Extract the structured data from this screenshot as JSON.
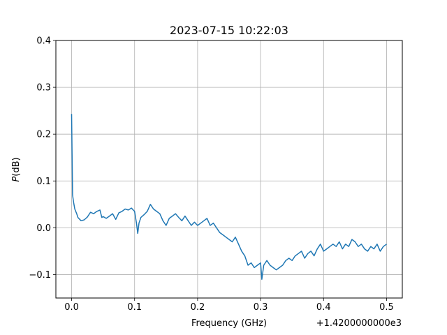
{
  "chart_data": {
    "type": "line",
    "title": "2023-07-15 10:22:03",
    "xlabel": "Frequency (GHz)",
    "ylabel_italic": "P",
    "ylabel_rest": "(dB)",
    "offset_text": "+1.4200000000e3",
    "xlim": [
      -0.025,
      0.525
    ],
    "ylim": [
      -0.15,
      0.4
    ],
    "grid": true,
    "line_color": "#1f77b4",
    "x_ticks": [
      0.0,
      0.1,
      0.2,
      0.3,
      0.4,
      0.5
    ],
    "x_tick_labels": [
      "0.0",
      "0.1",
      "0.2",
      "0.3",
      "0.4",
      "0.5"
    ],
    "y_ticks": [
      -0.1,
      0.0,
      0.1,
      0.2,
      0.3,
      0.4
    ],
    "y_tick_labels": [
      "−0.1",
      "0.0",
      "0.1",
      "0.2",
      "0.3",
      "0.4"
    ],
    "series": [
      {
        "x": [
          0.0,
          0.0015,
          0.003,
          0.005,
          0.008,
          0.01,
          0.015,
          0.02,
          0.025,
          0.03,
          0.035,
          0.04,
          0.045,
          0.048,
          0.05,
          0.055,
          0.06,
          0.065,
          0.07,
          0.075,
          0.08,
          0.085,
          0.09,
          0.095,
          0.1,
          0.103,
          0.105,
          0.107,
          0.11,
          0.115,
          0.12,
          0.125,
          0.13,
          0.135,
          0.14,
          0.145,
          0.15,
          0.155,
          0.16,
          0.165,
          0.17,
          0.175,
          0.18,
          0.185,
          0.19,
          0.195,
          0.2,
          0.205,
          0.21,
          0.215,
          0.22,
          0.225,
          0.23,
          0.235,
          0.24,
          0.245,
          0.25,
          0.255,
          0.26,
          0.265,
          0.27,
          0.275,
          0.28,
          0.285,
          0.29,
          0.295,
          0.3,
          0.302,
          0.305,
          0.31,
          0.315,
          0.32,
          0.325,
          0.33,
          0.335,
          0.34,
          0.345,
          0.35,
          0.355,
          0.36,
          0.365,
          0.37,
          0.375,
          0.38,
          0.385,
          0.39,
          0.395,
          0.4,
          0.405,
          0.41,
          0.415,
          0.42,
          0.425,
          0.43,
          0.435,
          0.44,
          0.445,
          0.45,
          0.455,
          0.46,
          0.465,
          0.47,
          0.475,
          0.48,
          0.485,
          0.49,
          0.495,
          0.5
        ],
        "y": [
          0.243,
          0.07,
          0.055,
          0.04,
          0.03,
          0.022,
          0.015,
          0.017,
          0.023,
          0.033,
          0.03,
          0.035,
          0.038,
          0.022,
          0.024,
          0.02,
          0.025,
          0.03,
          0.018,
          0.032,
          0.035,
          0.04,
          0.038,
          0.042,
          0.035,
          0.01,
          -0.012,
          0.01,
          0.022,
          0.028,
          0.035,
          0.05,
          0.04,
          0.035,
          0.03,
          0.015,
          0.005,
          0.02,
          0.025,
          0.03,
          0.022,
          0.015,
          0.025,
          0.015,
          0.005,
          0.012,
          0.005,
          0.01,
          0.015,
          0.02,
          0.005,
          0.01,
          0.0,
          -0.01,
          -0.015,
          -0.02,
          -0.025,
          -0.03,
          -0.02,
          -0.035,
          -0.05,
          -0.06,
          -0.08,
          -0.075,
          -0.085,
          -0.08,
          -0.075,
          -0.11,
          -0.08,
          -0.07,
          -0.08,
          -0.085,
          -0.09,
          -0.085,
          -0.08,
          -0.07,
          -0.065,
          -0.07,
          -0.06,
          -0.055,
          -0.05,
          -0.065,
          -0.055,
          -0.05,
          -0.06,
          -0.045,
          -0.035,
          -0.05,
          -0.045,
          -0.04,
          -0.035,
          -0.04,
          -0.03,
          -0.045,
          -0.035,
          -0.04,
          -0.025,
          -0.03,
          -0.04,
          -0.035,
          -0.045,
          -0.05,
          -0.04,
          -0.045,
          -0.035,
          -0.05,
          -0.04,
          -0.035
        ]
      }
    ]
  }
}
